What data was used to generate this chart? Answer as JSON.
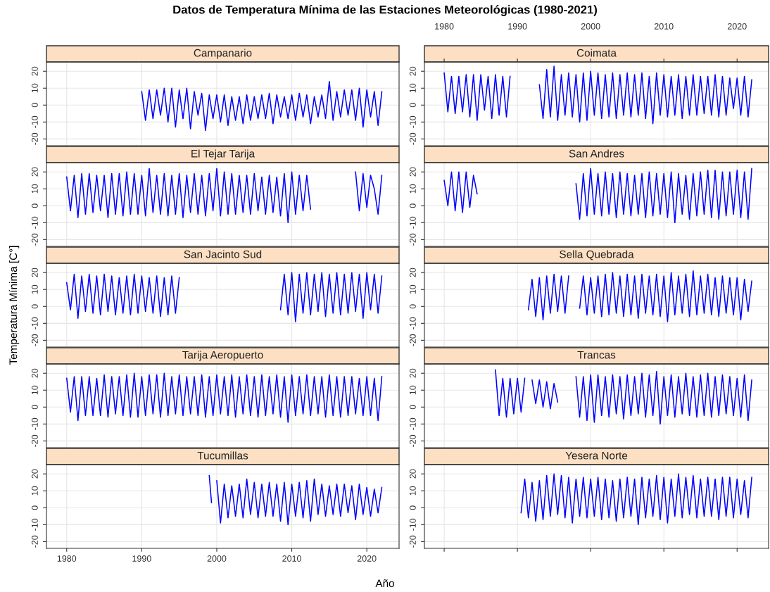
{
  "chart_data": [
    {
      "type": "line",
      "title": "Campanario",
      "annotations": [
        "Datos de Temperatura Mínima de las Estaciones Meteorológicas (1980-2021)"
      ],
      "xlim": [
        1977.3,
        2024.3
      ],
      "xticks": [
        1980,
        1990,
        2000,
        2010,
        2020
      ],
      "ylim": [
        -24,
        25.5
      ],
      "yticks": [
        -20,
        -10,
        0,
        10,
        20
      ],
      "grid": true,
      "tick_labels": "y",
      "x": [
        1990,
        1990.5,
        1991,
        1991.5,
        1992,
        1992.5,
        1993,
        1993.5,
        1994,
        1994.5,
        1995,
        1995.5,
        1996,
        1996.5,
        1997,
        1997.5,
        1998,
        1998.5,
        1999,
        1999.5,
        2000,
        2000.5,
        2001,
        2001.5,
        2002,
        2002.5,
        2003,
        2003.5,
        2004,
        2004.5,
        2005,
        2005.5,
        2006,
        2006.5,
        2007,
        2007.5,
        2008,
        2008.5,
        2009,
        2009.5,
        2010,
        2010.5,
        2011,
        2011.5,
        2012,
        2012.5,
        2013,
        2013.5,
        2014,
        2014.5,
        2015,
        2015.5,
        2016,
        2016.5,
        2017,
        2017.5,
        2018,
        2018.5,
        2019,
        2019.5,
        2020,
        2020.5,
        2021,
        2021.5,
        2022
      ],
      "series": [
        {
          "color": "#0000ff",
          "values": [
            8,
            -9,
            9,
            -8,
            9,
            -6,
            10,
            -10,
            10,
            -13,
            9,
            -8,
            10,
            -14,
            8,
            -6,
            7,
            -15,
            6,
            -8,
            6,
            -10,
            6,
            -12,
            5,
            -9,
            5,
            -11,
            6,
            -9,
            5,
            -8,
            6,
            -8,
            7,
            -11,
            6,
            -7,
            5,
            -8,
            6,
            -9,
            7,
            -7,
            6,
            -11,
            5,
            -7,
            6,
            -8,
            14,
            -9,
            8,
            -7,
            9,
            -6,
            9,
            -9,
            10,
            -13,
            9,
            -7,
            8,
            -12,
            8
          ]
        }
      ]
    },
    {
      "type": "line",
      "title": "Coimata",
      "xlim": [
        1977.3,
        2024.3
      ],
      "xticks": [
        1980,
        1990,
        2000,
        2010,
        2020
      ],
      "x2lim": [
        1977.3,
        2024.3
      ],
      "x2ticks": [
        1980,
        1990,
        2000,
        2010,
        2020
      ],
      "ylim": [
        -24,
        25.5
      ],
      "yticks": [
        -20,
        -10,
        0,
        10,
        20
      ],
      "grid": true,
      "tick_labels": "y",
      "x": [
        1980,
        1980.5,
        1981,
        1981.5,
        1982,
        1982.5,
        1983,
        1983.5,
        1984,
        1984.5,
        1985,
        1985.5,
        1986,
        1986.5,
        1987,
        1987.5,
        1988,
        1988.5,
        1989,
        1989.5,
        1990,
        1990.5,
        1991,
        1991.5,
        1992,
        1992.5,
        1993,
        1993.5,
        1994,
        1994.5,
        1995,
        1995.5,
        1996,
        1996.5,
        1997,
        1997.5,
        1998,
        1998.5,
        1999,
        1999.5,
        2000,
        2000.5,
        2001,
        2001.5,
        2002,
        2002.5,
        2003,
        2003.5,
        2004,
        2004.5,
        2005,
        2005.5,
        2006,
        2006.5,
        2007,
        2007.5,
        2008,
        2008.5,
        2009,
        2009.5,
        2010,
        2010.5,
        2011,
        2011.5,
        2012,
        2012.5,
        2013,
        2013.5,
        2014,
        2014.5,
        2015,
        2015.5,
        2016,
        2016.5,
        2017,
        2017.5,
        2018,
        2018.5,
        2019,
        2019.5,
        2020,
        2020.5,
        2021,
        2021.5,
        2022
      ],
      "series": [
        {
          "color": "#0000ff",
          "values": [
            19,
            -4,
            17,
            -5,
            17,
            -4,
            18,
            -7,
            18,
            -9,
            18,
            -3,
            17,
            -8,
            18,
            -6,
            17,
            -7,
            17,
            null,
            null,
            null,
            null,
            null,
            null,
            null,
            12,
            -8,
            21,
            -7,
            23,
            -9,
            18,
            -6,
            19,
            -7,
            18,
            -10,
            19,
            -9,
            20,
            -6,
            19,
            -8,
            18,
            -7,
            19,
            -8,
            18,
            -6,
            19,
            -7,
            18,
            -6,
            19,
            -8,
            17,
            -11,
            19,
            -6,
            18,
            -7,
            17,
            -6,
            18,
            -8,
            17,
            -6,
            18,
            -6,
            17,
            -5,
            17,
            -6,
            18,
            -7,
            17,
            -6,
            16,
            -2,
            16,
            -6,
            17,
            -7,
            15
          ]
        }
      ]
    },
    {
      "type": "line",
      "title": "El Tejar Tarija",
      "xlim": [
        1977.3,
        2024.3
      ],
      "xticks": [
        1980,
        1990,
        2000,
        2010,
        2020
      ],
      "ylim": [
        -24,
        25.5
      ],
      "yticks": [
        -20,
        -10,
        0,
        10,
        20
      ],
      "grid": true,
      "tick_labels": "y",
      "x": [
        1980,
        1980.5,
        1981,
        1981.5,
        1982,
        1982.5,
        1983,
        1983.5,
        1984,
        1984.5,
        1985,
        1985.5,
        1986,
        1986.5,
        1987,
        1987.5,
        1988,
        1988.5,
        1989,
        1989.5,
        1990,
        1990.5,
        1991,
        1991.5,
        1992,
        1992.5,
        1993,
        1993.5,
        1994,
        1994.5,
        1995,
        1995.5,
        1996,
        1996.5,
        1997,
        1997.5,
        1998,
        1998.5,
        1999,
        1999.5,
        2000,
        2000.5,
        2001,
        2001.5,
        2002,
        2002.5,
        2003,
        2003.5,
        2004,
        2004.5,
        2005,
        2005.5,
        2006,
        2006.5,
        2007,
        2007.5,
        2008,
        2008.5,
        2009,
        2009.5,
        2010,
        2010.5,
        2011,
        2011.5,
        2012,
        2012.5,
        2013,
        2013.5,
        2014,
        2014.5,
        2015,
        2015.5,
        2016,
        2016.5,
        2017,
        2017.5,
        2018,
        2018.5,
        2019,
        2019.5,
        2020,
        2020.5,
        2021,
        2021.5,
        2022
      ],
      "series": [
        {
          "color": "#0000ff",
          "values": [
            17,
            -3,
            18,
            -7,
            19,
            -5,
            19,
            -4,
            18,
            -3,
            18,
            -7,
            19,
            -5,
            19,
            -6,
            20,
            -5,
            19,
            -5,
            18,
            -6,
            22,
            -4,
            18,
            -5,
            19,
            -6,
            18,
            -5,
            19,
            -7,
            18,
            -4,
            19,
            -5,
            18,
            -6,
            19,
            -3,
            22,
            -6,
            20,
            -5,
            19,
            -5,
            18,
            -4,
            18,
            -5,
            19,
            -3,
            17,
            -5,
            18,
            -4,
            17,
            -6,
            19,
            -10,
            20,
            -5,
            18,
            -3,
            18,
            -2,
            null,
            null,
            null,
            null,
            null,
            null,
            null,
            null,
            null,
            null,
            null,
            20,
            -3,
            19,
            -1,
            18,
            10,
            -5,
            18
          ]
        }
      ]
    },
    {
      "type": "line",
      "title": "San Andres",
      "xlim": [
        1977.3,
        2024.3
      ],
      "xticks": [
        1980,
        1990,
        2000,
        2010,
        2020
      ],
      "ylim": [
        -24,
        25.5
      ],
      "yticks": [
        -20,
        -10,
        0,
        10,
        20
      ],
      "grid": true,
      "tick_labels": "y",
      "x": [
        1980,
        1980.5,
        1981,
        1981.5,
        1982,
        1982.5,
        1983,
        1983.5,
        1984,
        1984.5,
        1990,
        1998,
        1998.5,
        1999,
        1999.5,
        2000,
        2000.5,
        2001,
        2001.5,
        2002,
        2002.5,
        2003,
        2003.5,
        2004,
        2004.5,
        2005,
        2005.5,
        2006,
        2006.5,
        2007,
        2007.5,
        2008,
        2008.5,
        2009,
        2009.5,
        2010,
        2010.5,
        2011,
        2011.5,
        2012,
        2012.5,
        2013,
        2013.5,
        2014,
        2014.5,
        2015,
        2015.5,
        2016,
        2016.5,
        2017,
        2017.5,
        2018,
        2018.5,
        2019,
        2019.5,
        2020,
        2020.5,
        2021,
        2021.5,
        2022
      ],
      "series": [
        {
          "color": "#0000ff",
          "values": [
            15,
            0,
            20,
            -3,
            20,
            -4,
            20,
            -1,
            18,
            7,
            null,
            13,
            -8,
            19,
            -6,
            22,
            -5,
            19,
            -6,
            20,
            -5,
            19,
            -7,
            20,
            -5,
            19,
            -6,
            18,
            -5,
            19,
            -7,
            20,
            -6,
            19,
            -5,
            19,
            -7,
            20,
            -10,
            19,
            -5,
            18,
            -8,
            19,
            -6,
            20,
            -5,
            21,
            -7,
            21,
            -8,
            20,
            -6,
            20,
            -5,
            21,
            -7,
            20,
            -8,
            22
          ]
        }
      ]
    },
    {
      "type": "line",
      "title": "San Jacinto Sud",
      "ylabel": "Temperatura Mínima [C°]",
      "xlim": [
        1977.3,
        2024.3
      ],
      "xticks": [
        1980,
        1990,
        2000,
        2010,
        2020
      ],
      "ylim": [
        -24,
        25.5
      ],
      "yticks": [
        -20,
        -10,
        0,
        10,
        20
      ],
      "grid": true,
      "tick_labels": "y",
      "x": [
        1980,
        1980.5,
        1981,
        1981.5,
        1982,
        1982.5,
        1983,
        1983.5,
        1984,
        1984.5,
        1985,
        1985.5,
        1986,
        1986.5,
        1987,
        1987.5,
        1988,
        1988.5,
        1989,
        1989.5,
        1990,
        1990.5,
        1991,
        1991.5,
        1992,
        1992.5,
        1993,
        1993.5,
        1994,
        1994.5,
        1995,
        2002,
        2008.5,
        2009,
        2009.5,
        2010,
        2010.5,
        2011,
        2011.5,
        2012,
        2012.5,
        2013,
        2013.5,
        2014,
        2014.5,
        2015,
        2015.5,
        2016,
        2016.5,
        2017,
        2017.5,
        2018,
        2018.5,
        2019,
        2019.5,
        2020,
        2020.5,
        2021,
        2021.5,
        2022
      ],
      "series": [
        {
          "color": "#0000ff",
          "values": [
            14,
            -2,
            19,
            -7,
            18,
            -3,
            19,
            -4,
            18,
            -5,
            19,
            -3,
            18,
            -5,
            17,
            -4,
            18,
            -5,
            19,
            -4,
            18,
            -3,
            17,
            -4,
            18,
            -6,
            17,
            -5,
            18,
            -4,
            17,
            null,
            -2,
            19,
            -5,
            20,
            -9,
            19,
            -4,
            20,
            -5,
            19,
            -3,
            20,
            -6,
            19,
            -4,
            20,
            -5,
            19,
            -4,
            20,
            -3,
            19,
            -7,
            20,
            -2,
            19,
            -4,
            18
          ]
        }
      ]
    },
    {
      "type": "line",
      "title": "Sella Quebrada",
      "xlim": [
        1977.3,
        2024.3
      ],
      "xticks": [
        1980,
        1990,
        2000,
        2010,
        2020
      ],
      "ylim": [
        -24,
        25.5
      ],
      "yticks": [
        -20,
        -10,
        0,
        10,
        20
      ],
      "grid": true,
      "tick_labels": "y",
      "x": [
        1991.5,
        1992,
        1992.5,
        1993,
        1993.5,
        1994,
        1994.5,
        1995,
        1995.5,
        1996,
        1996.5,
        1997,
        1997.7,
        1998.5,
        1999,
        1999.5,
        2000,
        2000.5,
        2001,
        2001.5,
        2002,
        2002.5,
        2003,
        2003.5,
        2004,
        2004.5,
        2005,
        2005.5,
        2006,
        2006.5,
        2007,
        2007.5,
        2008,
        2008.5,
        2009,
        2009.5,
        2010,
        2010.5,
        2011,
        2011.5,
        2012,
        2012.5,
        2013,
        2013.5,
        2014,
        2014.5,
        2015,
        2015.5,
        2016,
        2016.5,
        2017,
        2017.5,
        2018,
        2018.5,
        2019,
        2019.5,
        2020,
        2020.5,
        2021,
        2021.5,
        2022
      ],
      "series": [
        {
          "color": "#0000ff",
          "values": [
            -2,
            16,
            -6,
            17,
            -8,
            18,
            -4,
            19,
            -3,
            18,
            -4,
            18,
            null,
            -1,
            18,
            -5,
            17,
            -4,
            18,
            -6,
            19,
            -5,
            20,
            -4,
            18,
            -6,
            19,
            -5,
            18,
            -7,
            19,
            -4,
            18,
            -5,
            19,
            -6,
            18,
            -9,
            20,
            -5,
            18,
            -4,
            19,
            -6,
            21,
            -5,
            18,
            -4,
            19,
            -5,
            17,
            -6,
            18,
            -4,
            17,
            -5,
            17,
            -8,
            16,
            -3,
            15
          ]
        }
      ]
    },
    {
      "type": "line",
      "title": "Tarija Aeropuerto",
      "xlim": [
        1977.3,
        2024.3
      ],
      "xticks": [
        1980,
        1990,
        2000,
        2010,
        2020
      ],
      "ylim": [
        -24,
        25.5
      ],
      "yticks": [
        -20,
        -10,
        0,
        10,
        20
      ],
      "grid": true,
      "tick_labels": "y",
      "x": [
        1980,
        1980.5,
        1981,
        1981.5,
        1982,
        1982.5,
        1983,
        1983.5,
        1984,
        1984.5,
        1985,
        1985.5,
        1986,
        1986.5,
        1987,
        1987.5,
        1988,
        1988.5,
        1989,
        1989.5,
        1990,
        1990.5,
        1991,
        1991.5,
        1992,
        1992.5,
        1993,
        1993.5,
        1994,
        1994.5,
        1995,
        1995.5,
        1996,
        1996.5,
        1997,
        1997.5,
        1998,
        1998.5,
        1999,
        1999.5,
        2000,
        2000.5,
        2001,
        2001.5,
        2002,
        2002.5,
        2003,
        2003.5,
        2004,
        2004.5,
        2005,
        2005.5,
        2006,
        2006.5,
        2007,
        2007.5,
        2008,
        2008.5,
        2009,
        2009.5,
        2010,
        2010.5,
        2011,
        2011.5,
        2012,
        2012.5,
        2013,
        2013.5,
        2014,
        2014.5,
        2015,
        2015.5,
        2016,
        2016.5,
        2017,
        2017.5,
        2018,
        2018.5,
        2019,
        2019.5,
        2020,
        2020.5,
        2021,
        2021.5,
        2022
      ],
      "series": [
        {
          "color": "#0000ff",
          "values": [
            17,
            -3,
            18,
            -8,
            18,
            -5,
            18,
            -5,
            17,
            -5,
            19,
            -6,
            18,
            -4,
            18,
            -5,
            19,
            -6,
            20,
            -6,
            18,
            -5,
            19,
            -4,
            19,
            -6,
            20,
            -5,
            18,
            -4,
            19,
            -5,
            18,
            -4,
            18,
            -5,
            19,
            -6,
            18,
            -5,
            19,
            -4,
            18,
            -5,
            19,
            -6,
            18,
            -4,
            19,
            -5,
            18,
            -6,
            19,
            -5,
            18,
            -4,
            19,
            -6,
            18,
            -9,
            19,
            -5,
            18,
            -4,
            19,
            -5,
            18,
            -4,
            18,
            -6,
            19,
            -5,
            18,
            -6,
            18,
            -5,
            18,
            -4,
            17,
            -5,
            18,
            -5,
            17,
            -8,
            18
          ]
        }
      ]
    },
    {
      "type": "line",
      "title": "Trancas",
      "xlim": [
        1977.3,
        2024.3
      ],
      "xticks": [
        1980,
        1990,
        2000,
        2010,
        2020
      ],
      "ylim": [
        -24,
        25.5
      ],
      "yticks": [
        -20,
        -10,
        0,
        10,
        20
      ],
      "grid": true,
      "tick_labels": "y",
      "x": [
        1987,
        1987.5,
        1988,
        1988.5,
        1989,
        1989.5,
        1990,
        1990.5,
        1991,
        1991.5,
        1992,
        1992.5,
        1993,
        1993.5,
        1994,
        1994.5,
        1995,
        1995.5,
        1996,
        1998,
        1998.5,
        1999,
        1999.5,
        2000,
        2000.5,
        2001,
        2001.5,
        2002,
        2002.5,
        2003,
        2003.5,
        2004,
        2004.5,
        2005,
        2005.5,
        2006,
        2006.5,
        2007,
        2007.5,
        2008,
        2008.5,
        2009,
        2009.5,
        2010,
        2010.5,
        2011,
        2011.5,
        2012,
        2012.5,
        2013,
        2013.5,
        2014,
        2014.5,
        2015,
        2015.5,
        2016,
        2016.5,
        2017,
        2017.5,
        2018,
        2018.5,
        2019,
        2019.5,
        2020,
        2020.5,
        2021,
        2021.5,
        2022
      ],
      "series": [
        {
          "color": "#0000ff",
          "values": [
            22,
            -5,
            17,
            -6,
            17,
            -4,
            17,
            -3,
            17,
            null,
            16,
            2,
            16,
            0,
            15,
            -1,
            14,
            3,
            null,
            18,
            -6,
            18,
            -8,
            19,
            -9,
            19,
            -5,
            18,
            -6,
            19,
            -4,
            18,
            -7,
            19,
            -5,
            18,
            -4,
            20,
            -6,
            19,
            -5,
            21,
            -10,
            18,
            -5,
            19,
            -6,
            18,
            -4,
            20,
            -5,
            18,
            -6,
            19,
            -5,
            20,
            -6,
            18,
            -5,
            19,
            -4,
            18,
            -5,
            17,
            -6,
            19,
            -8,
            16
          ]
        }
      ]
    },
    {
      "type": "line",
      "title": "Tucumillas",
      "xlabel": "Año",
      "xlim": [
        1977.3,
        2024.3
      ],
      "xticks": [
        1980,
        1990,
        2000,
        2010,
        2020
      ],
      "ylim": [
        -24,
        25.5
      ],
      "yticks": [
        -20,
        -10,
        0,
        10,
        20
      ],
      "grid": true,
      "x": [
        1999,
        1999.3,
        1999.6,
        2000,
        2000.5,
        2001,
        2001.5,
        2002,
        2002.5,
        2003,
        2003.5,
        2004,
        2004.5,
        2005,
        2005.5,
        2006,
        2006.5,
        2007,
        2007.5,
        2008,
        2008.5,
        2009,
        2009.5,
        2010,
        2010.5,
        2011,
        2011.5,
        2012,
        2012.5,
        2013,
        2013.5,
        2014,
        2014.5,
        2015,
        2015.5,
        2016,
        2016.5,
        2017,
        2017.5,
        2018,
        2018.5,
        2019,
        2019.5,
        2020,
        2020.5,
        2021,
        2021.5,
        2022
      ],
      "series": [
        {
          "color": "#0000ff",
          "values": [
            19,
            3,
            null,
            16,
            -9,
            14,
            -6,
            13,
            -5,
            14,
            -6,
            17,
            -4,
            15,
            -6,
            14,
            -5,
            15,
            -5,
            14,
            -8,
            15,
            -10,
            14,
            -5,
            15,
            -6,
            16,
            -8,
            17,
            -4,
            14,
            -5,
            13,
            -4,
            14,
            -5,
            14,
            -3,
            13,
            -7,
            14,
            -4,
            12,
            -5,
            11,
            -3,
            12
          ]
        }
      ]
    },
    {
      "type": "line",
      "title": "Yesera Norte",
      "xlim": [
        1977.3,
        2024.3
      ],
      "xticks": [
        1980,
        1990,
        2000,
        2010,
        2020
      ],
      "ylim": [
        -24,
        25.5
      ],
      "yticks": [
        -20,
        -10,
        0,
        10,
        20
      ],
      "grid": true,
      "tick_labels": "y",
      "x": [
        1990.5,
        1991,
        1991.5,
        1992,
        1992.5,
        1993,
        1993.5,
        1994,
        1994.5,
        1995,
        1995.5,
        1996,
        1996.5,
        1997,
        1997.5,
        1998,
        1998.5,
        1999,
        1999.5,
        2000,
        2000.5,
        2001,
        2001.5,
        2002,
        2002.5,
        2003,
        2003.5,
        2004,
        2004.5,
        2005,
        2005.5,
        2006,
        2006.5,
        2007,
        2007.5,
        2008,
        2008.5,
        2009,
        2009.5,
        2010,
        2010.5,
        2011,
        2011.5,
        2012,
        2012.5,
        2013,
        2013.5,
        2014,
        2014.5,
        2015,
        2015.5,
        2016,
        2016.5,
        2017,
        2017.5,
        2018,
        2018.5,
        2019,
        2019.5,
        2020,
        2020.5,
        2021,
        2021.5,
        2022
      ],
      "series": [
        {
          "color": "#0000ff",
          "values": [
            -3,
            17,
            -6,
            15,
            -8,
            16,
            -7,
            19,
            -5,
            20,
            -4,
            19,
            -6,
            18,
            -9,
            17,
            -5,
            18,
            -6,
            17,
            -5,
            18,
            -7,
            17,
            -6,
            16,
            -8,
            17,
            -6,
            18,
            -5,
            17,
            -10,
            18,
            -6,
            17,
            -5,
            19,
            -7,
            18,
            -9,
            17,
            -5,
            20,
            -6,
            18,
            -4,
            19,
            -6,
            17,
            -5,
            18,
            -5,
            17,
            -7,
            18,
            -5,
            18,
            -6,
            17,
            -4,
            16,
            -6,
            18
          ]
        }
      ]
    }
  ]
}
